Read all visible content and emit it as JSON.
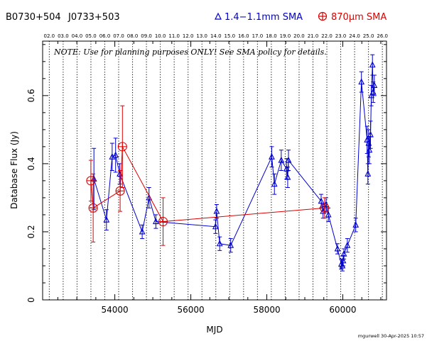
{
  "header": {
    "source_b1950": "B0730+504",
    "source_j2000": "J0733+503",
    "legend_blue": "1.4−1.1mm SMA",
    "legend_red": "870μm SMA"
  },
  "note": "NOTE: Use for planning purposes ONLY!  See SMA policy for details.",
  "footer_stamp": "mgurwell 30-Apr-2025 10:57",
  "colors": {
    "blue": "#0000cc",
    "red": "#dd0000"
  },
  "chart_data": {
    "type": "scatter",
    "xlabel": "MJD",
    "ylabel": "Database Flux (Jy)",
    "xlim": [
      52100,
      61150
    ],
    "ylim": [
      0,
      0.76
    ],
    "xticks": [
      54000,
      56000,
      58000,
      60000
    ],
    "yticks": [
      0,
      0.2,
      0.4,
      0.6
    ],
    "year_labels": [
      "02.0",
      "03.0",
      "04.0",
      "05.0",
      "06.0",
      "07.0",
      "08.0",
      "09.0",
      "10.0",
      "11.0",
      "12.0",
      "13.0",
      "14.0",
      "15.0",
      "16.0",
      "17.0",
      "18.0",
      "19.0",
      "20.0",
      "21.0",
      "22.0",
      "23.0",
      "24.0",
      "25.0",
      "26.0"
    ],
    "series": [
      {
        "name": "1.4−1.1mm SMA",
        "color": "#0000cc",
        "marker": "triangle",
        "points": [
          {
            "x": 53450,
            "y": 0.355,
            "err": 0.09
          },
          {
            "x": 53780,
            "y": 0.235,
            "err": 0.03
          },
          {
            "x": 53930,
            "y": 0.42,
            "err": 0.04
          },
          {
            "x": 54020,
            "y": 0.425,
            "err": 0.05
          },
          {
            "x": 54130,
            "y": 0.37,
            "err": 0.03
          },
          {
            "x": 54720,
            "y": 0.2,
            "err": 0.02
          },
          {
            "x": 54900,
            "y": 0.3,
            "err": 0.03
          },
          {
            "x": 55080,
            "y": 0.23,
            "err": 0.02
          },
          {
            "x": 56650,
            "y": 0.215,
            "err": 0.02
          },
          {
            "x": 56680,
            "y": 0.26,
            "err": 0.02
          },
          {
            "x": 56760,
            "y": 0.165,
            "err": 0.02
          },
          {
            "x": 57050,
            "y": 0.16,
            "err": 0.02
          },
          {
            "x": 58130,
            "y": 0.42,
            "err": 0.03
          },
          {
            "x": 58200,
            "y": 0.34,
            "err": 0.03
          },
          {
            "x": 58380,
            "y": 0.41,
            "err": 0.03
          },
          {
            "x": 58520,
            "y": 0.385,
            "err": 0.03
          },
          {
            "x": 58550,
            "y": 0.36,
            "err": 0.03
          },
          {
            "x": 58570,
            "y": 0.41,
            "err": 0.03
          },
          {
            "x": 59430,
            "y": 0.29,
            "err": 0.02
          },
          {
            "x": 59480,
            "y": 0.26,
            "err": 0.02
          },
          {
            "x": 59560,
            "y": 0.28,
            "err": 0.02
          },
          {
            "x": 59620,
            "y": 0.25,
            "err": 0.02
          },
          {
            "x": 59860,
            "y": 0.15,
            "err": 0.015
          },
          {
            "x": 59960,
            "y": 0.105,
            "err": 0.015
          },
          {
            "x": 59990,
            "y": 0.1,
            "err": 0.015
          },
          {
            "x": 60010,
            "y": 0.115,
            "err": 0.015
          },
          {
            "x": 60030,
            "y": 0.135,
            "err": 0.015
          },
          {
            "x": 60120,
            "y": 0.16,
            "err": 0.02
          },
          {
            "x": 60340,
            "y": 0.22,
            "err": 0.02
          },
          {
            "x": 60490,
            "y": 0.64,
            "err": 0.03
          },
          {
            "x": 60640,
            "y": 0.47,
            "err": 0.04
          },
          {
            "x": 60660,
            "y": 0.37,
            "err": 0.03
          },
          {
            "x": 60680,
            "y": 0.46,
            "err": 0.04
          },
          {
            "x": 60700,
            "y": 0.44,
            "err": 0.04
          },
          {
            "x": 60730,
            "y": 0.485,
            "err": 0.04
          },
          {
            "x": 60750,
            "y": 0.6,
            "err": 0.03
          },
          {
            "x": 60780,
            "y": 0.69,
            "err": 0.03
          },
          {
            "x": 60800,
            "y": 0.61,
            "err": 0.03
          },
          {
            "x": 60830,
            "y": 0.63,
            "err": 0.03
          }
        ]
      },
      {
        "name": "870μm SMA",
        "color": "#dd0000",
        "marker": "circle-plus",
        "points": [
          {
            "x": 53370,
            "y": 0.35,
            "err": 0.06
          },
          {
            "x": 53430,
            "y": 0.27,
            "err": 0.1
          },
          {
            "x": 54140,
            "y": 0.32,
            "err": 0.06
          },
          {
            "x": 54200,
            "y": 0.45,
            "err": 0.12
          },
          {
            "x": 55270,
            "y": 0.23,
            "err": 0.07
          },
          {
            "x": 59520,
            "y": 0.27,
            "err": 0.03
          }
        ]
      }
    ]
  }
}
